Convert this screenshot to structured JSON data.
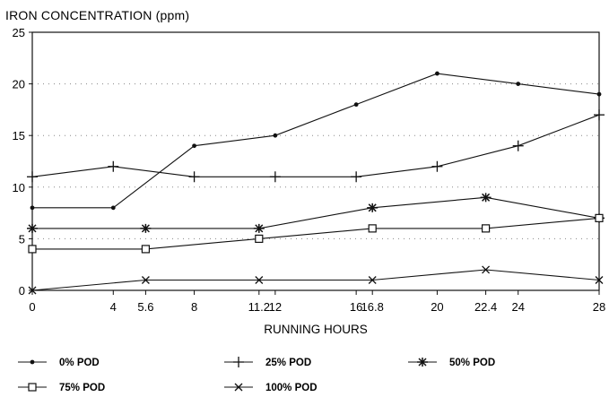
{
  "chart_data": {
    "type": "line",
    "title": "IRON CONCENTRATION (ppm)",
    "xlabel": "RUNNING HOURS",
    "ylabel": "",
    "x_tick_labels": [
      "0",
      "4",
      "5.6",
      "8",
      "11.2",
      "12",
      "16",
      "16.8",
      "20",
      "22.4",
      "24",
      "28"
    ],
    "ylim": [
      0,
      25
    ],
    "y_ticks": [
      0,
      5,
      10,
      15,
      20,
      25
    ],
    "grid": "dotted horizontal",
    "legend_position": "bottom",
    "series": [
      {
        "name": "0% POD",
        "marker": "dot",
        "points": [
          [
            0,
            8
          ],
          [
            4,
            8
          ],
          [
            8,
            14
          ],
          [
            12,
            15
          ],
          [
            16,
            18
          ],
          [
            20,
            21
          ],
          [
            24,
            20
          ],
          [
            28,
            19
          ]
        ]
      },
      {
        "name": "25% POD",
        "marker": "plus",
        "points": [
          [
            0,
            11
          ],
          [
            4,
            12
          ],
          [
            8,
            11
          ],
          [
            12,
            11
          ],
          [
            16,
            11
          ],
          [
            20,
            12
          ],
          [
            24,
            14
          ],
          [
            28,
            17
          ]
        ]
      },
      {
        "name": "50% POD",
        "marker": "asterisk",
        "points": [
          [
            0,
            6
          ],
          [
            5.6,
            6
          ],
          [
            11.2,
            6
          ],
          [
            16.8,
            8
          ],
          [
            22.4,
            9
          ],
          [
            28,
            7
          ]
        ]
      },
      {
        "name": "75% POD",
        "marker": "square",
        "points": [
          [
            0,
            4
          ],
          [
            5.6,
            4
          ],
          [
            11.2,
            5
          ],
          [
            16.8,
            6
          ],
          [
            22.4,
            6
          ],
          [
            28,
            7
          ]
        ]
      },
      {
        "name": "100% POD",
        "marker": "x",
        "points": [
          [
            0,
            0
          ],
          [
            5.6,
            1
          ],
          [
            11.2,
            1
          ],
          [
            16.8,
            1
          ],
          [
            22.4,
            2
          ],
          [
            28,
            1
          ]
        ]
      }
    ]
  }
}
